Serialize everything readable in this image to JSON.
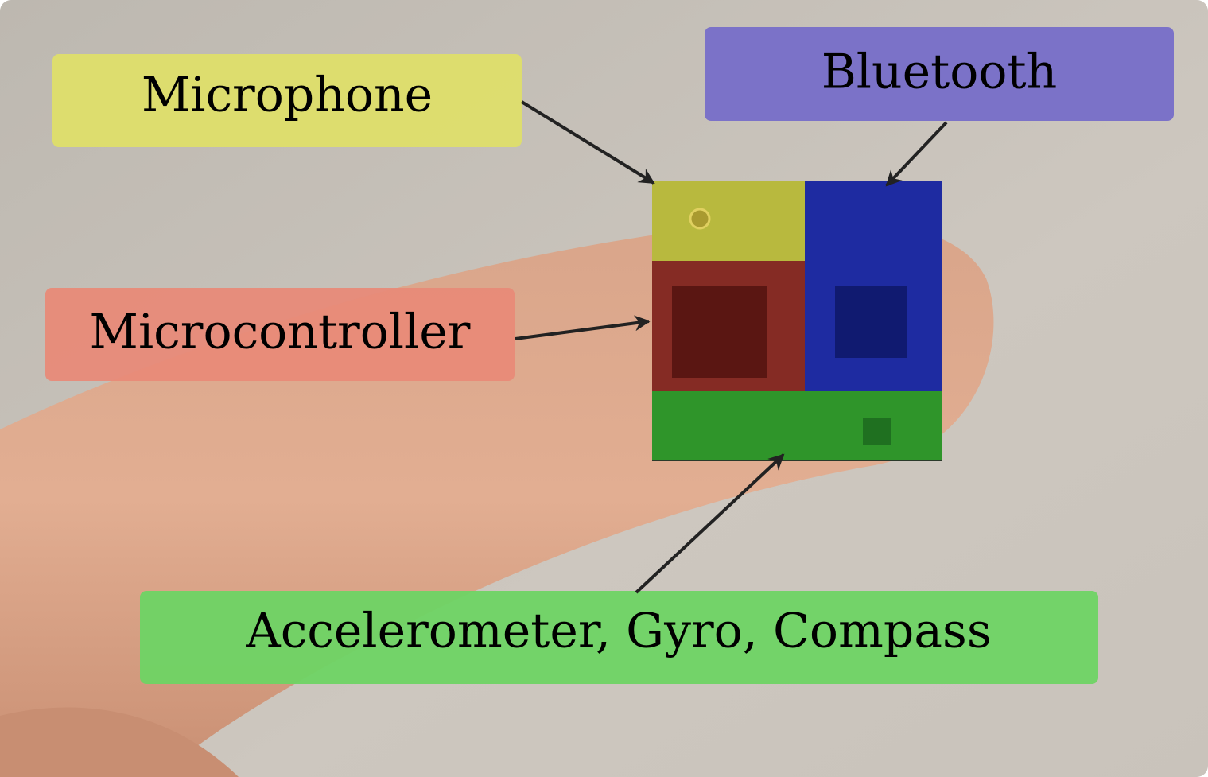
{
  "labels": [
    {
      "text": "Microphone"
    },
    {
      "text": "Bluetooth"
    },
    {
      "text": "Microcontroller"
    },
    {
      "text": "Accelerometer, Gyro, Compass"
    }
  ]
}
